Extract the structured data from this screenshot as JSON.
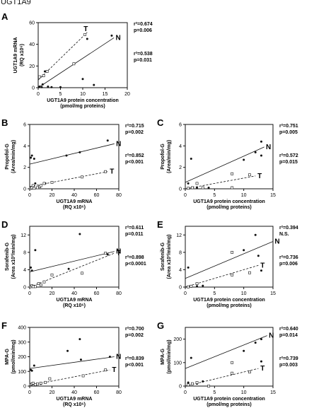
{
  "header": {
    "title": "UGT1A9"
  },
  "colors": {
    "ink": "#111111",
    "open_marker_fill": "#ffffff"
  },
  "chart_data": [
    {
      "panel": "A",
      "type": "scatter",
      "xlabel": [
        "UGT1A9 protein concentration",
        "(pmol/mg proteins)"
      ],
      "ylabel": [
        "UGT1A9 mRNA",
        "(RQ x10⁶)"
      ],
      "xlim": [
        0,
        20
      ],
      "ylim": [
        0,
        60
      ],
      "xticks": [
        0,
        5,
        10,
        15,
        20
      ],
      "yticks": [
        0,
        20,
        40,
        60
      ],
      "series": [
        {
          "name": "N",
          "marker": "filled",
          "line": "solid",
          "points": [
            [
              0.3,
              1
            ],
            [
              0.8,
              0.5
            ],
            [
              1,
              3
            ],
            [
              1.5,
              15
            ],
            [
              2.2,
              1
            ],
            [
              3,
              0.5
            ],
            [
              5,
              0.5
            ],
            [
              10,
              8
            ],
            [
              11,
              45
            ],
            [
              12.5,
              2.5
            ],
            [
              16.5,
              48
            ]
          ],
          "fit": [
            [
              0,
              0
            ],
            [
              17,
              46
            ]
          ]
        },
        {
          "name": "T",
          "marker": "open",
          "line": "dashed",
          "points": [
            [
              0.3,
              10
            ],
            [
              1.2,
              11
            ],
            [
              2,
              15
            ],
            [
              8,
              22
            ],
            [
              10.5,
              49
            ]
          ],
          "fit": [
            [
              0,
              7
            ],
            [
              11,
              51
            ]
          ]
        }
      ],
      "stats": [
        {
          "r2": "r²=0.674",
          "p": "p=0.006"
        },
        {
          "r2": "r²=0.538",
          "p": "p=0.031"
        }
      ]
    },
    {
      "panel": "B",
      "type": "scatter",
      "xlabel": [
        "UGT1A9 mRNA",
        "(RQ x10⁶)"
      ],
      "ylabel": [
        "Propofol-G",
        "(Area/min/mg)"
      ],
      "xlim": [
        0,
        80
      ],
      "ylim": [
        0,
        6
      ],
      "xticks": [
        0,
        20,
        40,
        60,
        80
      ],
      "yticks": [
        0,
        2,
        4,
        6
      ],
      "series": [
        {
          "name": "N",
          "marker": "filled",
          "line": "solid",
          "points": [
            [
              1,
              2.9
            ],
            [
              2,
              3.1
            ],
            [
              4,
              2.8
            ],
            [
              5,
              0.5
            ],
            [
              14,
              0.5
            ],
            [
              33,
              3.1
            ],
            [
              45,
              3.4
            ],
            [
              70,
              4.5
            ]
          ],
          "fit": [
            [
              0,
              2.3
            ],
            [
              76,
              4.2
            ]
          ]
        },
        {
          "name": "T",
          "marker": "open",
          "line": "dashed",
          "points": [
            [
              1,
              0.05
            ],
            [
              2,
              0.1
            ],
            [
              3,
              0.3
            ],
            [
              4,
              0.05
            ],
            [
              7,
              0.1
            ],
            [
              9,
              0.2
            ],
            [
              10,
              0.3
            ],
            [
              13,
              0.5
            ],
            [
              20,
              0.6
            ],
            [
              47,
              1.1
            ],
            [
              68,
              1.6
            ]
          ],
          "fit": [
            [
              0,
              0.2
            ],
            [
              70,
              1.6
            ]
          ]
        }
      ],
      "stats": [
        {
          "r2": "r²=0.715",
          "p": "p=0.002"
        },
        {
          "r2": "r²=0.852",
          "p": "p<0.001"
        }
      ]
    },
    {
      "panel": "C",
      "type": "scatter",
      "xlabel": [
        "UGT1A9 protein concentration",
        "(pmol/mg proteins)"
      ],
      "ylabel": [
        "Propofol-G",
        "(Area/min/mg)"
      ],
      "xlim": [
        0,
        15
      ],
      "ylim": [
        0,
        6
      ],
      "xticks": [
        0,
        5,
        10,
        15
      ],
      "yticks": [
        0,
        2,
        4,
        6
      ],
      "series": [
        {
          "name": "N",
          "marker": "filled",
          "line": "solid",
          "points": [
            [
              0.5,
              0.5
            ],
            [
              1,
              2.8
            ],
            [
              2,
              0.1
            ],
            [
              3,
              0.1
            ],
            [
              4,
              0.1
            ],
            [
              10,
              2.7
            ],
            [
              12,
              3.4
            ],
            [
              13,
              4.4
            ],
            [
              13,
              3.1
            ]
          ],
          "fit": [
            [
              0,
              0.6
            ],
            [
              13.5,
              3.9
            ]
          ]
        },
        {
          "name": "T",
          "marker": "open",
          "line": "dashed",
          "points": [
            [
              0.5,
              0.05
            ],
            [
              1.2,
              0.1
            ],
            [
              2,
              0.5
            ],
            [
              3,
              0.1
            ],
            [
              8,
              1.4
            ],
            [
              8,
              0.1
            ],
            [
              11,
              1.3
            ]
          ],
          "fit": [
            [
              0,
              0
            ],
            [
              12,
              1.2
            ]
          ]
        }
      ],
      "stats": [
        {
          "r2": "r²=0.751",
          "p": "p=0.005"
        },
        {
          "r2": "r²=0.572",
          "p": "p=0.015"
        }
      ]
    },
    {
      "panel": "D",
      "type": "scatter",
      "xlabel": [
        "UGT1A9 mRNA",
        "(RQ x10⁶)"
      ],
      "ylabel": [
        "Sorafenib-G",
        "(Area x10³/min/mg)"
      ],
      "xlim": [
        0,
        80
      ],
      "ylim": [
        0,
        14
      ],
      "xticks": [
        0,
        20,
        40,
        60,
        80
      ],
      "yticks": [
        0,
        4,
        8,
        12
      ],
      "series": [
        {
          "name": "N",
          "marker": "filled",
          "line": "solid",
          "points": [
            [
              1,
              4.5
            ],
            [
              2,
              3.8
            ],
            [
              3,
              0.1
            ],
            [
              5,
              8.5
            ],
            [
              10,
              0.5
            ],
            [
              35,
              4.2
            ],
            [
              45,
              12.2
            ],
            [
              70,
              7.5
            ]
          ],
          "fit": [
            [
              0,
              3.5
            ],
            [
              76,
              8.2
            ]
          ]
        },
        {
          "name": "T",
          "marker": "open",
          "line": "dashed",
          "points": [
            [
              1,
              0.1
            ],
            [
              2,
              0.3
            ],
            [
              3,
              0.1
            ],
            [
              5,
              0.1
            ],
            [
              8,
              0.8
            ],
            [
              10,
              0.5
            ],
            [
              13,
              1.2
            ],
            [
              20,
              2.8
            ],
            [
              47,
              3.2
            ],
            [
              68,
              7.8
            ]
          ],
          "fit": [
            [
              0,
              0
            ],
            [
              76,
              7.8
            ]
          ]
        }
      ],
      "stats": [
        {
          "r2": "r²=0.611",
          "p": "p=0.011"
        },
        {
          "r2": "r²=0.898",
          "p": "p<0.0001"
        }
      ]
    },
    {
      "panel": "E",
      "type": "scatter",
      "xlabel": [
        "UGT1A9 protein concentration",
        "(pmol/mg proteins)"
      ],
      "ylabel": [
        "Sorafenib-G",
        "(Area x10³/min/mg)"
      ],
      "xlim": [
        0,
        15
      ],
      "ylim": [
        0,
        14
      ],
      "xticks": [
        0,
        5,
        10,
        15
      ],
      "yticks": [
        0,
        4,
        8,
        12
      ],
      "series": [
        {
          "name": "N",
          "marker": "filled",
          "line": "solid",
          "points": [
            [
              0.5,
              4.5
            ],
            [
              1,
              0.1
            ],
            [
              2,
              0.2
            ],
            [
              3,
              0.3
            ],
            [
              10,
              8.5
            ],
            [
              12,
              12
            ],
            [
              12.5,
              7.2
            ],
            [
              13,
              3.8
            ]
          ],
          "fit": [
            [
              0,
              2
            ],
            [
              15,
              10.5
            ]
          ]
        },
        {
          "name": "T",
          "marker": "open",
          "line": "dashed",
          "points": [
            [
              0.5,
              0.05
            ],
            [
              1,
              0.2
            ],
            [
              2,
              0.8
            ],
            [
              8,
              8
            ],
            [
              8,
              2.8
            ],
            [
              11,
              3.3
            ]
          ],
          "fit": [
            [
              0,
              0
            ],
            [
              12.5,
              5
            ]
          ]
        }
      ],
      "stats": [
        {
          "r2": "r²=0.394",
          "p": "N.S."
        },
        {
          "r2": "r²=0.736",
          "p": "p=0.006"
        }
      ]
    },
    {
      "panel": "F",
      "type": "scatter",
      "xlabel": [
        "UGT1A9 mRNA",
        "(RQ x10⁶)"
      ],
      "ylabel": [
        "MPA-G",
        "(pmol/min/mg)"
      ],
      "xlim": [
        0,
        80
      ],
      "ylim": [
        0,
        400
      ],
      "xticks": [
        0,
        20,
        40,
        60,
        80
      ],
      "yticks": [
        0,
        100,
        200,
        300,
        400
      ],
      "series": [
        {
          "name": "N",
          "marker": "filled",
          "line": "solid",
          "points": [
            [
              1,
              110
            ],
            [
              2,
              105
            ],
            [
              4,
              140
            ],
            [
              10,
              15
            ],
            [
              34,
              240
            ],
            [
              45,
              320
            ],
            [
              46,
              180
            ],
            [
              72,
              200
            ]
          ],
          "fit": [
            [
              0,
              120
            ],
            [
              76,
              200
            ]
          ]
        },
        {
          "name": "T",
          "marker": "open",
          "line": "dashed",
          "points": [
            [
              1,
              10
            ],
            [
              2,
              15
            ],
            [
              3,
              20
            ],
            [
              5,
              10
            ],
            [
              7,
              15
            ],
            [
              10,
              20
            ],
            [
              14,
              25
            ],
            [
              18,
              50
            ],
            [
              48,
              70
            ],
            [
              68,
              110
            ]
          ],
          "fit": [
            [
              0,
              5
            ],
            [
              72,
              110
            ]
          ]
        }
      ],
      "stats": [
        {
          "r2": "r²=0.700",
          "p": "p=0.002"
        },
        {
          "r2": "r²=0.839",
          "p": "p<0.001"
        }
      ]
    },
    {
      "panel": "G",
      "type": "scatter",
      "xlabel": [
        "UGT1A9 protein concentration",
        "(pmol/mg proteins)"
      ],
      "ylabel": [
        "MPA-G",
        "(pmol/min/mg)"
      ],
      "xlim": [
        0,
        15
      ],
      "ylim": [
        0,
        250
      ],
      "xticks": [
        0,
        5,
        10,
        15
      ],
      "yticks": [
        0,
        100,
        200
      ],
      "series": [
        {
          "name": "N",
          "marker": "filled",
          "line": "solid",
          "points": [
            [
              0.5,
              15
            ],
            [
              1,
              120
            ],
            [
              2,
              10
            ],
            [
              3,
              20
            ],
            [
              10,
              150
            ],
            [
              12,
              185
            ],
            [
              13,
              105
            ],
            [
              13,
              200
            ]
          ],
          "fit": [
            [
              0,
              75
            ],
            [
              14,
              215
            ]
          ]
        },
        {
          "name": "T",
          "marker": "open",
          "line": "dashed",
          "points": [
            [
              0.5,
              5
            ],
            [
              1.2,
              10
            ],
            [
              2,
              15
            ],
            [
              4,
              0
            ],
            [
              8,
              100
            ],
            [
              8,
              55
            ],
            [
              11,
              60
            ]
          ],
          "fit": [
            [
              0,
              0
            ],
            [
              12.5,
              75
            ]
          ]
        }
      ],
      "stats": [
        {
          "r2": "r²=0.640",
          "p": "p=0.014"
        },
        {
          "r2": "r²=0.739",
          "p": "p=0.003"
        }
      ]
    }
  ]
}
